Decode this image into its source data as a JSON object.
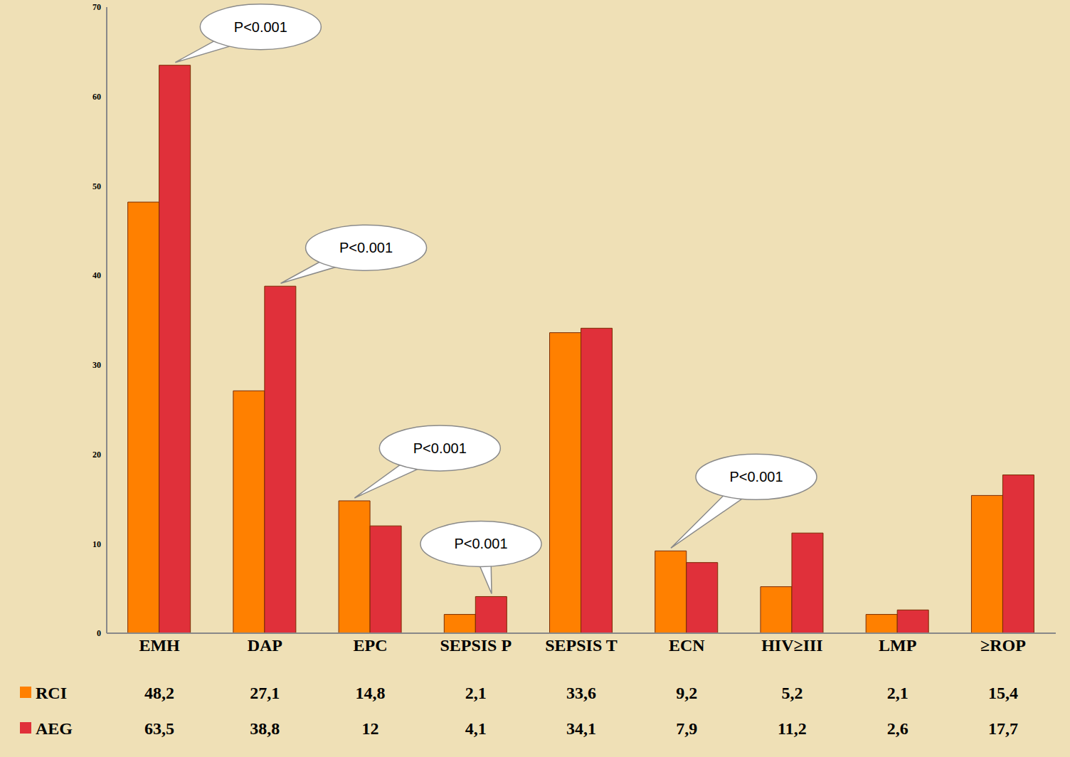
{
  "chart_data": {
    "type": "bar",
    "categories": [
      "EMH",
      "DAP",
      "EPC",
      "SEPSIS P",
      "SEPSIS T",
      "ECN",
      "HIV≥III",
      "LMP",
      "≥ROP"
    ],
    "series": [
      {
        "name": "RCI",
        "color": "#ff8000",
        "values": [
          48.2,
          27.1,
          14.8,
          2.1,
          33.6,
          9.2,
          5.2,
          2.1,
          15.4
        ],
        "value_labels": [
          "48,2",
          "27,1",
          "14,8",
          "2,1",
          "33,6",
          "9,2",
          "5,2",
          "2,1",
          "15,4"
        ]
      },
      {
        "name": "AEG",
        "color": "#e0303a",
        "values": [
          63.5,
          38.8,
          12,
          4.1,
          34.1,
          7.9,
          11.2,
          2.6,
          17.7
        ],
        "value_labels": [
          "63,5",
          "38,8",
          "12",
          "4,1",
          "34,1",
          "7,9",
          "11,2",
          "2,6",
          "17,7"
        ]
      }
    ],
    "ylim": [
      0,
      70
    ],
    "yticks": [
      0,
      10,
      20,
      30,
      40,
      50,
      60,
      70
    ],
    "grid": false,
    "data_labels": true,
    "annotations": [
      {
        "text": "P<0.001",
        "category": "EMH"
      },
      {
        "text": "P<0.001",
        "category": "DAP"
      },
      {
        "text": "P<0.001",
        "category": "EPC"
      },
      {
        "text": "P<0.001",
        "category": "SEPSIS P"
      },
      {
        "text": "P<0.001",
        "category": "ECN"
      }
    ]
  }
}
